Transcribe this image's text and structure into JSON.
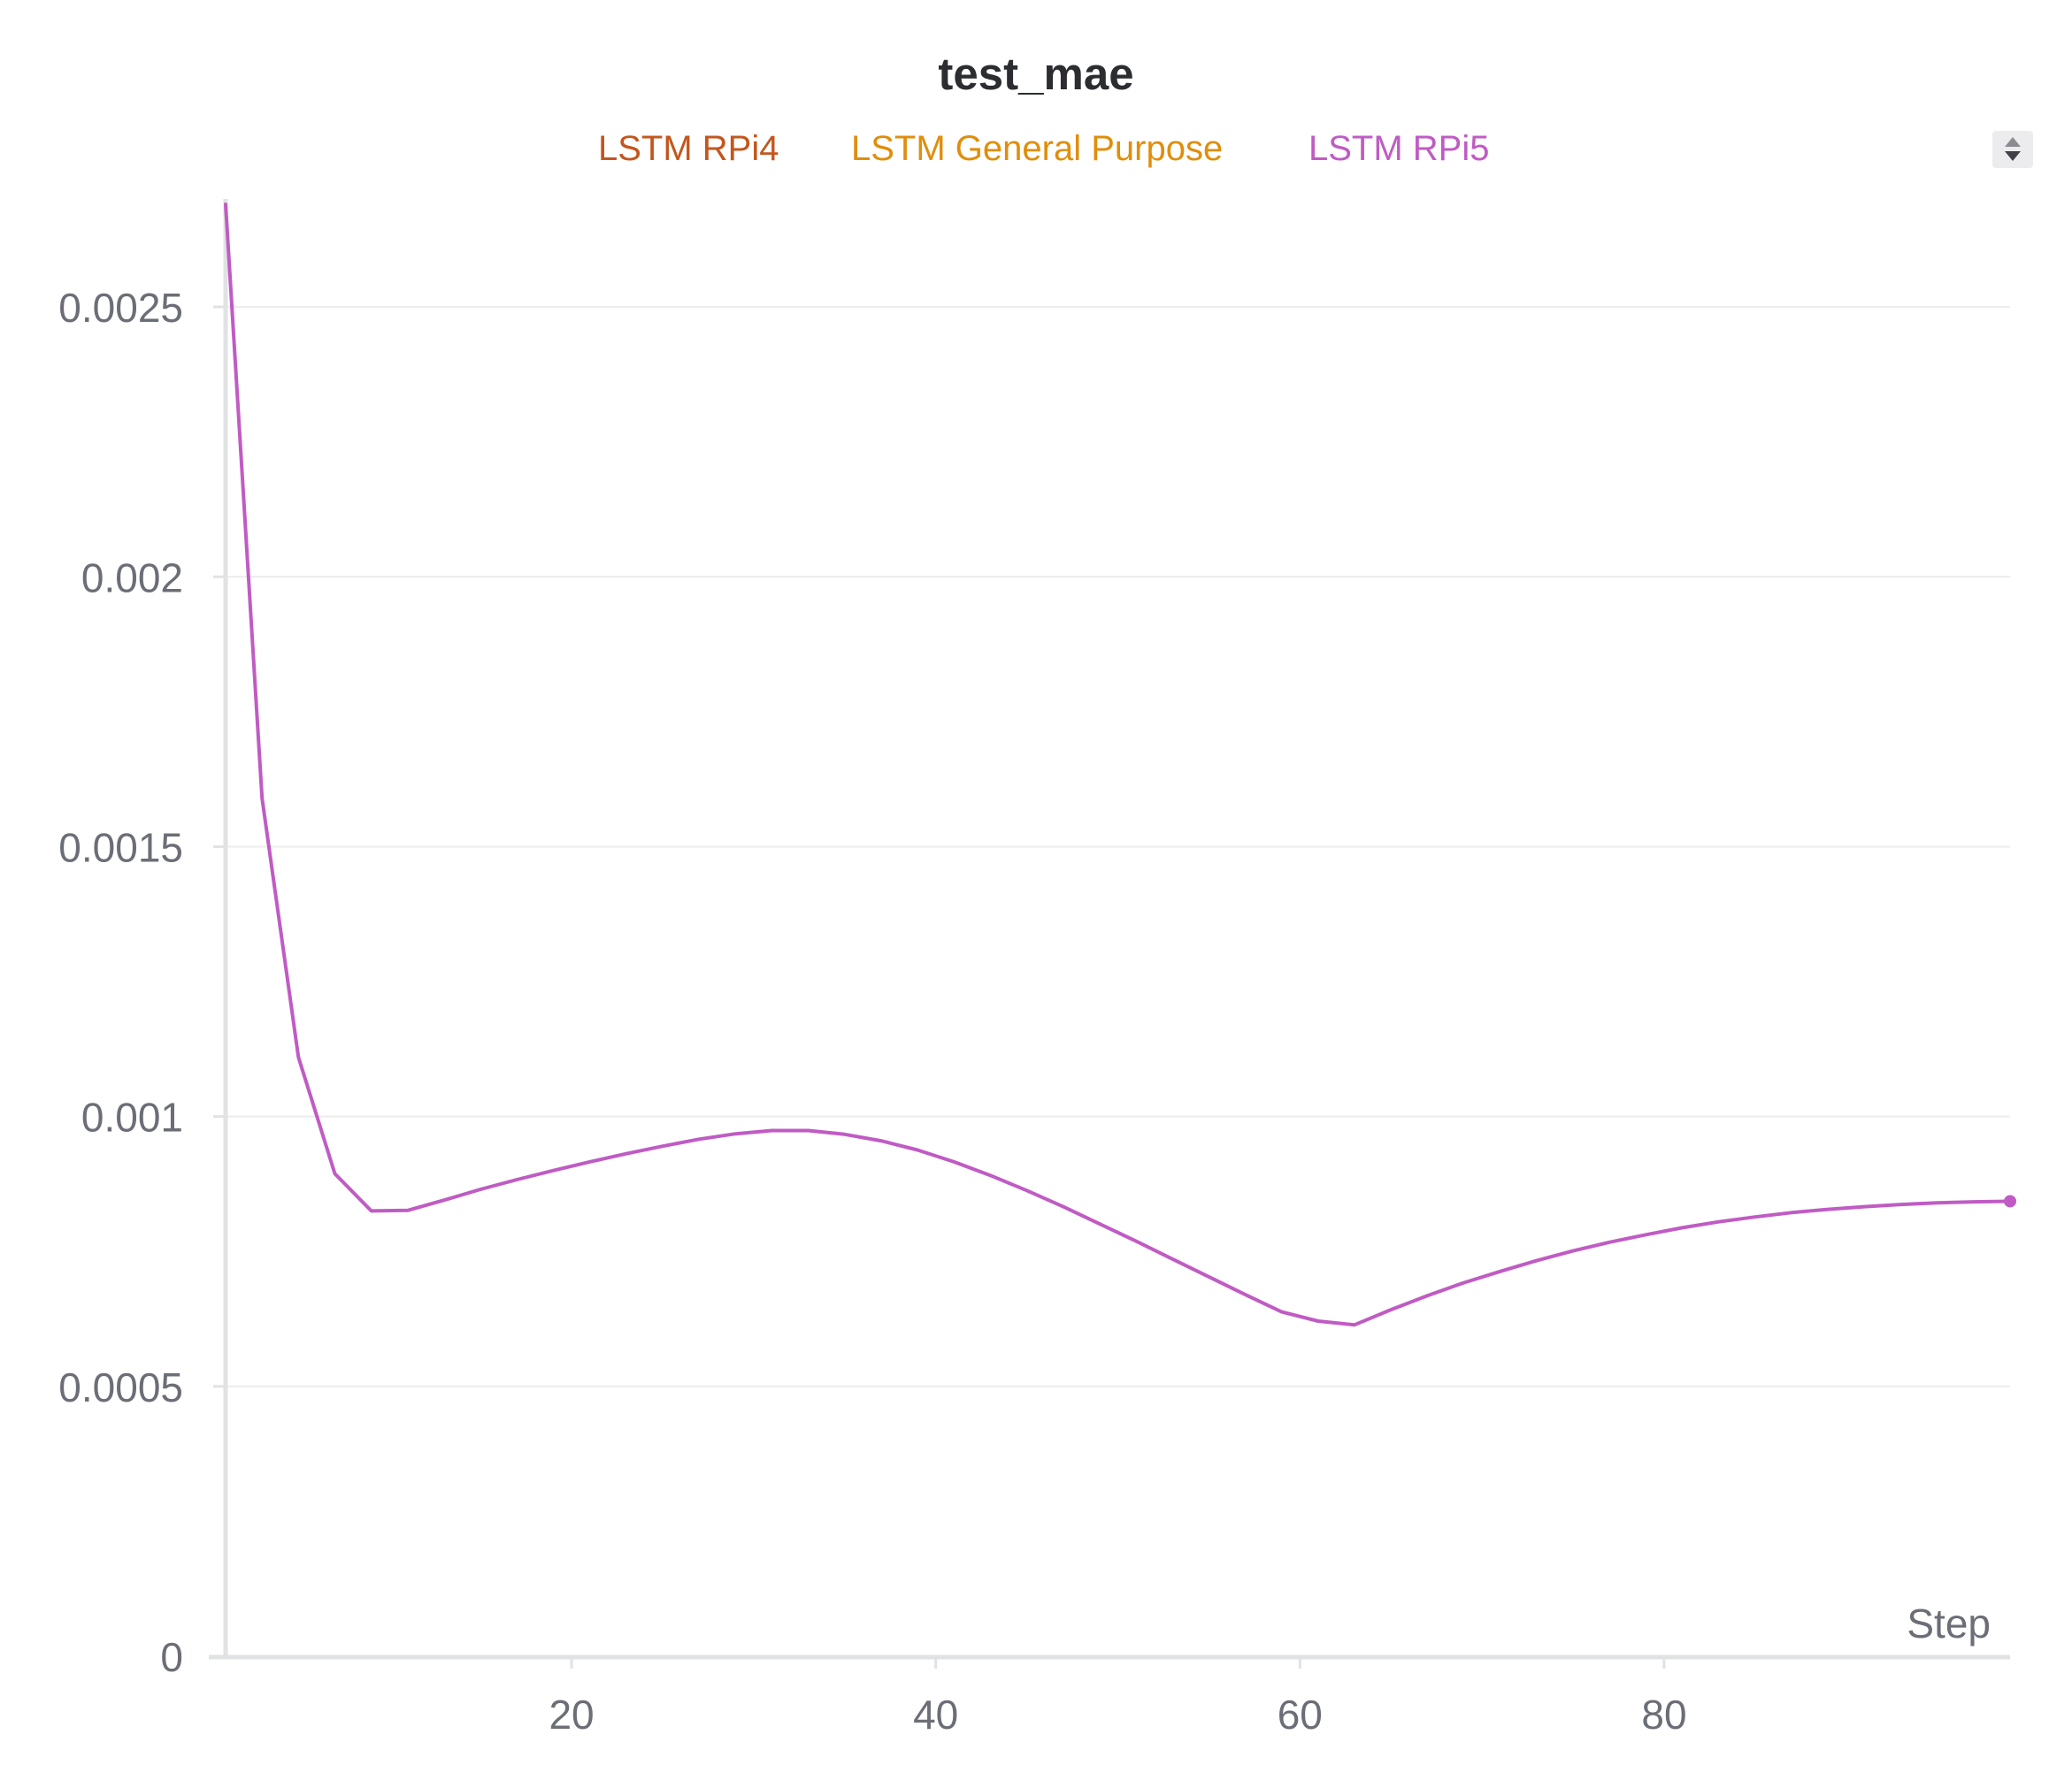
{
  "chart_data": {
    "type": "line",
    "title": "test_mae",
    "xlabel": "Step",
    "ylabel": "",
    "xlim": [
      1,
      99
    ],
    "ylim": [
      0,
      0.0027
    ],
    "x_ticks": [
      20,
      40,
      60,
      80
    ],
    "y_ticks": [
      0,
      0.0005,
      0.001,
      0.0015,
      0.002,
      0.0025
    ],
    "y_tick_labels": [
      "0",
      "0.0005",
      "0.001",
      "0.0015",
      "0.002",
      "0.0025"
    ],
    "x_tick_labels": [
      "20",
      "40",
      "60",
      "80"
    ],
    "grid": true,
    "legend_position": "top-center",
    "legend": [
      {
        "name": "LSTM RPi4",
        "color": "#c4561d"
      },
      {
        "name": "LSTM General Purpose",
        "color": "#e08e0b"
      },
      {
        "name": "LSTM RPi5",
        "color": "#c05bc4"
      }
    ],
    "series": [
      {
        "name": "LSTM RPi5",
        "color": "#c05bc4",
        "x": [
          1,
          3,
          5,
          7,
          9,
          11,
          13,
          15,
          17,
          19,
          21,
          23,
          25,
          27,
          29,
          31,
          33,
          35,
          37,
          39,
          41,
          43,
          45,
          47,
          49,
          51,
          53,
          55,
          57,
          59,
          61,
          63,
          65,
          67,
          69,
          71,
          73,
          75,
          77,
          79,
          81,
          83,
          85,
          87,
          89,
          91,
          93,
          95,
          97,
          99
        ],
        "y": [
          0.00269,
          0.00159,
          0.00111,
          0.000894,
          0.000825,
          0.000826,
          0.000845,
          0.000865,
          0.000883,
          0.0009,
          0.000916,
          0.000931,
          0.000945,
          0.000958,
          0.000968,
          0.000974,
          0.000974,
          0.000967,
          0.000955,
          0.000938,
          0.000916,
          0.000891,
          0.000863,
          0.000833,
          0.000801,
          0.000769,
          0.000736,
          0.000703,
          0.00067,
          0.000638,
          0.000621,
          0.000614,
          0.000642,
          0.000668,
          0.000692,
          0.000713,
          0.000733,
          0.000751,
          0.000767,
          0.000781,
          0.000794,
          0.000805,
          0.000814,
          0.000822,
          0.000828,
          0.000833,
          0.000837,
          0.00084,
          0.000842,
          0.000843
        ]
      }
    ]
  },
  "colors": {
    "axis": "#e1e2e4",
    "grid": "#ececee",
    "tick_text": "#6b6e76",
    "title": "#2b2d31",
    "scroll_icon": "updown-scroll-icon"
  }
}
